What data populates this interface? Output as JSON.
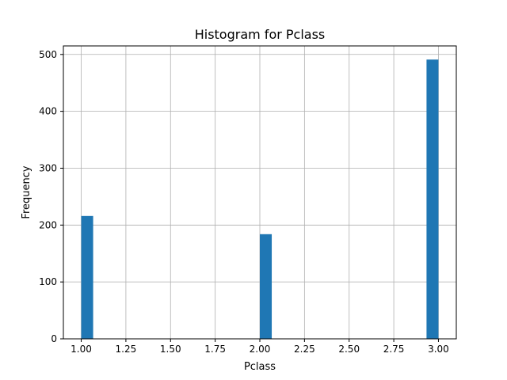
{
  "chart_data": {
    "type": "bar",
    "title": "Histogram for Pclass",
    "xlabel": "Pclass",
    "ylabel": "Frequency",
    "xlim": [
      0.9,
      3.1
    ],
    "ylim": [
      0,
      515
    ],
    "grid": true,
    "bins": 30,
    "bar_color": "#1f77b4",
    "bars": [
      {
        "x0": 1.0,
        "x1": 1.0667,
        "value": 216
      },
      {
        "x0": 2.0,
        "x1": 2.0667,
        "value": 184
      },
      {
        "x0": 2.9333,
        "x1": 3.0,
        "value": 491
      }
    ],
    "xticks": [
      1.0,
      1.25,
      1.5,
      1.75,
      2.0,
      2.25,
      2.5,
      2.75,
      3.0
    ],
    "xtick_labels": [
      "1.00",
      "1.25",
      "1.50",
      "1.75",
      "2.00",
      "2.25",
      "2.50",
      "2.75",
      "3.00"
    ],
    "yticks": [
      0,
      100,
      200,
      300,
      400,
      500
    ],
    "ytick_labels": [
      "0",
      "100",
      "200",
      "300",
      "400",
      "500"
    ]
  }
}
